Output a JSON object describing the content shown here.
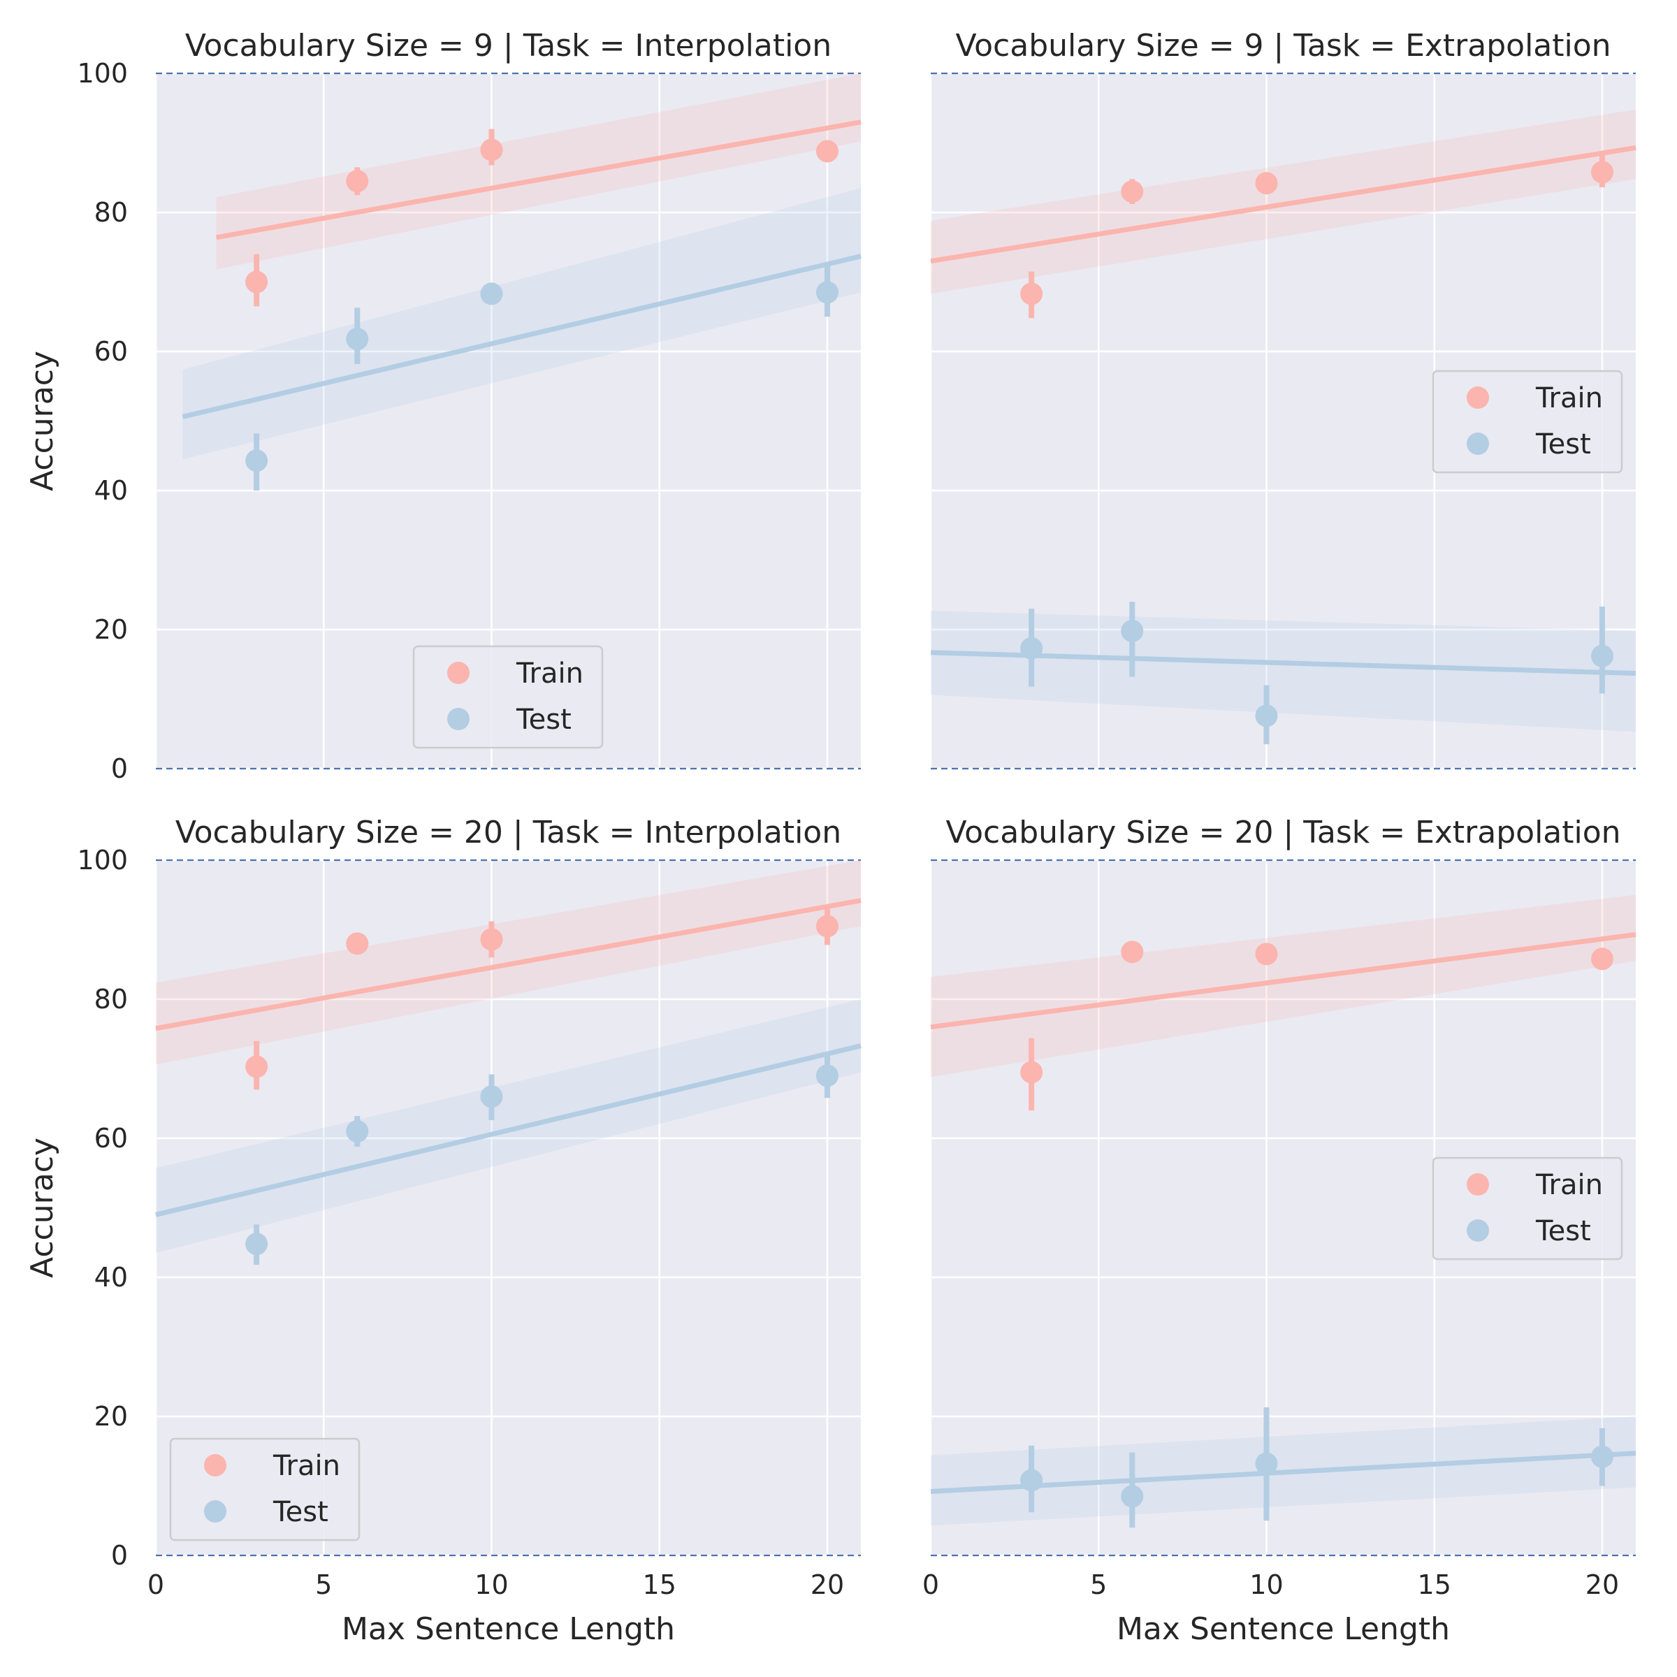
{
  "colors": {
    "train": "#fbb4ae",
    "test": "#b3cde3",
    "panel_bg": "#eaeaf2",
    "grid": "#ffffff",
    "ref_line": "#4c72b0"
  },
  "axes": {
    "xlabel": "Max Sentence Length",
    "ylabel": "Accuracy",
    "xlim": [
      0,
      21
    ],
    "ylim": [
      0,
      100
    ],
    "xticks": [
      0,
      5,
      10,
      15,
      20
    ],
    "yticks": [
      0,
      20,
      40,
      60,
      80,
      100
    ],
    "reference_lines": [
      0,
      100
    ]
  },
  "chart_data": [
    {
      "type": "scatter",
      "title": "Vocabulary Size = 9 | Task = Interpolation",
      "legend_position": "lower-center",
      "series": [
        {
          "name": "Train",
          "x": [
            3,
            6,
            10,
            20
          ],
          "y": [
            70,
            84.5,
            89,
            88.8
          ],
          "err_low": [
            66.5,
            82.5,
            86.8,
            87.8
          ],
          "err_high": [
            74,
            86.5,
            92,
            89.8
          ],
          "fit": {
            "x": [
              1.8,
              21
            ],
            "y": [
              76.4,
              93
            ]
          },
          "band_low": [
            71.8,
            90.2
          ],
          "band_high": [
            82.2,
            100
          ]
        },
        {
          "name": "Test",
          "x": [
            3,
            6,
            10,
            20
          ],
          "y": [
            44.3,
            61.8,
            68.3,
            68.5
          ],
          "err_low": [
            40,
            58.2,
            67.5,
            65
          ],
          "err_high": [
            48.2,
            66.3,
            69.2,
            72.8
          ],
          "fit": {
            "x": [
              0.8,
              21
            ],
            "y": [
              50.6,
              73.7
            ]
          },
          "band_low": [
            44.5,
            68.5
          ],
          "band_high": [
            57.4,
            83.5
          ]
        }
      ]
    },
    {
      "type": "scatter",
      "title": "Vocabulary Size = 9 | Task = Extrapolation",
      "legend_position": "center-right",
      "series": [
        {
          "name": "Train",
          "x": [
            3,
            6,
            10,
            20
          ],
          "y": [
            68.3,
            83,
            84.2,
            85.8
          ],
          "err_low": [
            64.8,
            81.2,
            82.8,
            83.6
          ],
          "err_high": [
            71.5,
            84.8,
            85.6,
            88.2
          ],
          "fit": {
            "x": [
              0,
              21
            ],
            "y": [
              73,
              89.3
            ]
          },
          "band_low": [
            68.3,
            84.8
          ],
          "band_high": [
            78.8,
            94.8
          ]
        },
        {
          "name": "Test",
          "x": [
            3,
            6,
            10,
            20
          ],
          "y": [
            17.3,
            19.8,
            7.6,
            16.2
          ],
          "err_low": [
            11.8,
            13.2,
            3.5,
            10.8
          ],
          "err_high": [
            23,
            24,
            12,
            23.3
          ],
          "fit": {
            "x": [
              0,
              21
            ],
            "y": [
              16.7,
              13.7
            ]
          },
          "band_low": [
            10.6,
            5.3
          ],
          "band_high": [
            22.7,
            19.8
          ]
        }
      ]
    },
    {
      "type": "scatter",
      "title": "Vocabulary Size = 20 | Task = Interpolation",
      "legend_position": "lower-left",
      "series": [
        {
          "name": "Train",
          "x": [
            3,
            6,
            10,
            20
          ],
          "y": [
            70.3,
            88,
            88.6,
            90.5
          ],
          "err_low": [
            67,
            87.4,
            86,
            87.8
          ],
          "err_high": [
            74,
            88.6,
            91.2,
            93.5
          ],
          "fit": {
            "x": [
              0,
              21
            ],
            "y": [
              75.8,
              94.2
            ]
          },
          "band_low": [
            70.6,
            90.5
          ],
          "band_high": [
            82.4,
            100
          ]
        },
        {
          "name": "Test",
          "x": [
            3,
            6,
            10,
            20
          ],
          "y": [
            44.8,
            61,
            66,
            69
          ],
          "err_low": [
            41.8,
            58.8,
            62.6,
            65.8
          ],
          "err_high": [
            47.6,
            63.2,
            69.2,
            72.2
          ],
          "fit": {
            "x": [
              0,
              21
            ],
            "y": [
              49,
              73.3
            ]
          },
          "band_low": [
            43.5,
            69.5
          ],
          "band_high": [
            55.7,
            80
          ]
        }
      ]
    },
    {
      "type": "scatter",
      "title": "Vocabulary Size = 20 | Task = Extrapolation",
      "legend_position": "center-right",
      "series": [
        {
          "name": "Train",
          "x": [
            3,
            6,
            10,
            20
          ],
          "y": [
            69.5,
            86.8,
            86.5,
            85.8
          ],
          "err_low": [
            64,
            85.6,
            85.2,
            85
          ],
          "err_high": [
            74.4,
            88,
            87.8,
            86.6
          ],
          "fit": {
            "x": [
              0,
              21
            ],
            "y": [
              76,
              89.3
            ]
          },
          "band_low": [
            68.8,
            85.5
          ],
          "band_high": [
            83.2,
            95
          ]
        },
        {
          "name": "Test",
          "x": [
            3,
            6,
            10,
            20
          ],
          "y": [
            10.8,
            8.5,
            13.2,
            14.2
          ],
          "err_low": [
            6.2,
            4,
            5,
            10
          ],
          "err_high": [
            15.8,
            14.8,
            21.3,
            18.3
          ],
          "fit": {
            "x": [
              0,
              21
            ],
            "y": [
              9.2,
              14.7
            ]
          },
          "band_low": [
            4.3,
            9.8
          ],
          "band_high": [
            14.4,
            20
          ]
        }
      ]
    }
  ]
}
